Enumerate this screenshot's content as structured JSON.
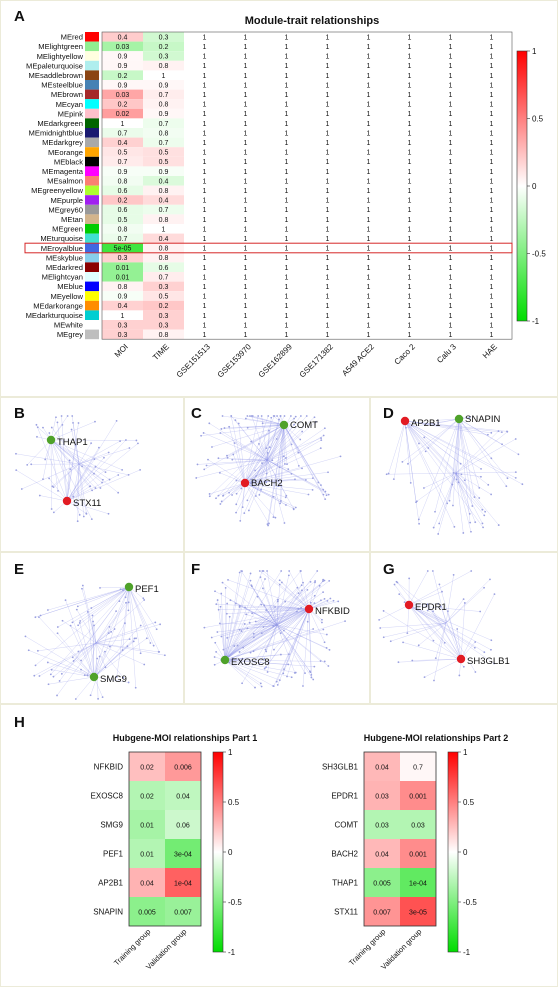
{
  "panels": {
    "a": "A",
    "b": "B",
    "c": "C",
    "d": "D",
    "e": "E",
    "f": "F",
    "g": "G",
    "h": "H"
  },
  "colors": {
    "pos": "#ff0000",
    "neg": "#00dd00",
    "mid": "#ffffff",
    "panel_border": "#ecebd9",
    "network_edge": "#8a8ee8",
    "node_red": "#e21b23",
    "node_green": "#4fa22a",
    "highlight_box": "#d62728"
  },
  "chart_data": [
    {
      "type": "heatmap",
      "title": "Module-trait relationships",
      "x_labels": [
        "MOI",
        "TIME",
        "GSE151513",
        "GSE153970",
        "GSE162899",
        "GSE171382",
        "A549 ACE2",
        "Caco 2",
        "Calu 3",
        "HAE"
      ],
      "modules": [
        {
          "name": "MEred",
          "swatch": "#ff0000"
        },
        {
          "name": "MElightgreen",
          "swatch": "#90ee90"
        },
        {
          "name": "MElightyellow",
          "swatch": "#ffffe0"
        },
        {
          "name": "MEpaleturquoise",
          "swatch": "#afeeee"
        },
        {
          "name": "MEsaddlebrown",
          "swatch": "#8b4513"
        },
        {
          "name": "MEsteelblue",
          "swatch": "#4682b4"
        },
        {
          "name": "MEbrown",
          "swatch": "#a52a2a"
        },
        {
          "name": "MEcyan",
          "swatch": "#00ffff"
        },
        {
          "name": "MEpink",
          "swatch": "#ffc0cb"
        },
        {
          "name": "MEdarkgreen",
          "swatch": "#006400"
        },
        {
          "name": "MEmidnightblue",
          "swatch": "#191970"
        },
        {
          "name": "MEdarkgrey",
          "swatch": "#a9a9a9"
        },
        {
          "name": "MEorange",
          "swatch": "#ffa500"
        },
        {
          "name": "MEblack",
          "swatch": "#000000"
        },
        {
          "name": "MEmagenta",
          "swatch": "#ff00ff"
        },
        {
          "name": "MEsalmon",
          "swatch": "#fa8072"
        },
        {
          "name": "MEgreenyellow",
          "swatch": "#adff2f"
        },
        {
          "name": "MEpurple",
          "swatch": "#a020f0"
        },
        {
          "name": "MEgrey60",
          "swatch": "#999999"
        },
        {
          "name": "MEtan",
          "swatch": "#d2b48c"
        },
        {
          "name": "MEgreen",
          "swatch": "#00cc00"
        },
        {
          "name": "MEturquoise",
          "swatch": "#40e0d0"
        },
        {
          "name": "MEroyalblue",
          "swatch": "#4169e1"
        },
        {
          "name": "MEskyblue",
          "swatch": "#87ceeb"
        },
        {
          "name": "MEdarkred",
          "swatch": "#8b0000"
        },
        {
          "name": "MElightcyan",
          "swatch": "#e0ffff"
        },
        {
          "name": "MEblue",
          "swatch": "#0000ff"
        },
        {
          "name": "MEyellow",
          "swatch": "#ffff00"
        },
        {
          "name": "MEdarkorange",
          "swatch": "#ff8c00"
        },
        {
          "name": "MEdarkturquoise",
          "swatch": "#00ced1"
        },
        {
          "name": "MEwhite",
          "swatch": "#ffffff"
        },
        {
          "name": "MEgrey",
          "swatch": "#bebebe"
        }
      ],
      "moi_labels": [
        "0.4",
        "0.03",
        "0.9",
        "0.9",
        "0.2",
        "0.9",
        "0.03",
        "0.2",
        "0.02",
        "1",
        "0.7",
        "0.4",
        "0.5",
        "0.7",
        "0.9",
        "0.8",
        "0.6",
        "0.2",
        "0.6",
        "0.5",
        "0.8",
        "0.7",
        "5e-05",
        "0.3",
        "0.01",
        "0.01",
        "0.8",
        "0.9",
        "0.4",
        "1",
        "0.3",
        "0.3"
      ],
      "moi_corr": [
        0.2,
        -0.35,
        0.03,
        0.03,
        -0.22,
        0.03,
        0.35,
        0.22,
        0.38,
        0,
        -0.08,
        0.18,
        0.1,
        0.08,
        -0.03,
        -0.05,
        -0.1,
        0.22,
        -0.1,
        -0.1,
        -0.05,
        -0.08,
        -0.75,
        0.18,
        -0.42,
        -0.42,
        0.05,
        -0.03,
        0.18,
        0,
        0.18,
        0.18
      ],
      "time_labels": [
        "0.3",
        "0.2",
        "0.3",
        "0.8",
        "1",
        "0.9",
        "0.7",
        "0.8",
        "0.9",
        "0.7",
        "0.8",
        "0.7",
        "0.5",
        "0.5",
        "0.9",
        "0.4",
        "0.8",
        "0.4",
        "0.7",
        "0.8",
        "1",
        "0.4",
        "0.8",
        "0.8",
        "0.6",
        "0.7",
        "0.3",
        "0.5",
        "0.2",
        "0.3",
        "0.3",
        "0.8"
      ],
      "time_corr": [
        -0.18,
        -0.22,
        -0.18,
        0.05,
        0,
        0.03,
        0.07,
        0.05,
        0.03,
        -0.07,
        -0.05,
        -0.07,
        0.12,
        0.12,
        -0.03,
        -0.14,
        0.05,
        0.14,
        -0.07,
        0.05,
        0,
        0.14,
        0.05,
        0.05,
        -0.1,
        0.07,
        0.18,
        0.1,
        0.22,
        0.18,
        0.18,
        0.05
      ],
      "constant_cell_label": "1",
      "highlight_row": "MEroyalblue",
      "legend": {
        "ticks": [
          "1",
          "0.5",
          "0",
          "-0.5",
          "-1"
        ],
        "range": [
          -1,
          1
        ]
      }
    },
    {
      "type": "heatmap",
      "title": "Hubgene-MOI relationships Part 1",
      "genes": [
        "NFKBID",
        "EXOSC8",
        "SMG9",
        "PEF1",
        "AP2B1",
        "SNAPIN"
      ],
      "x_labels": [
        "Training group",
        "Validation group"
      ],
      "training_labels": [
        "0.02",
        "0.02",
        "0.01",
        "0.01",
        "0.04",
        "0.005"
      ],
      "training_corr": [
        0.25,
        -0.3,
        -0.35,
        -0.3,
        0.3,
        -0.45
      ],
      "validation_labels": [
        "0.006",
        "0.04",
        "0.06",
        "3e-04",
        "1e-04",
        "0.007"
      ],
      "validation_corr": [
        0.4,
        -0.25,
        -0.2,
        -0.55,
        0.62,
        -0.4
      ],
      "legend": {
        "ticks": [
          "1",
          "0.5",
          "0",
          "-0.5",
          "-1"
        ],
        "range": [
          -1,
          1
        ]
      }
    },
    {
      "type": "heatmap",
      "title": "Hubgene-MOI relationships Part 2",
      "genes": [
        "SH3GLB1",
        "EPDR1",
        "COMT",
        "BACH2",
        "THAP1",
        "STX11"
      ],
      "x_labels": [
        "Training group",
        "Validation group"
      ],
      "training_labels": [
        "0.04",
        "0.03",
        "0.03",
        "0.04",
        "0.005",
        "0.007"
      ],
      "training_corr": [
        0.28,
        0.3,
        -0.3,
        0.28,
        -0.45,
        0.42
      ],
      "validation_labels": [
        "0.7",
        "0.001",
        "0.03",
        "0.001",
        "1e-04",
        "3e-05"
      ],
      "validation_corr": [
        0.03,
        0.45,
        -0.3,
        0.45,
        -0.62,
        0.68
      ],
      "legend": {
        "ticks": [
          "1",
          "0.5",
          "0",
          "-0.5",
          "-1"
        ],
        "range": [
          -1,
          1
        ]
      }
    }
  ],
  "networks": [
    {
      "panel": "B",
      "nodes": [
        {
          "label": "THAP1",
          "color": "green"
        },
        {
          "label": "STX11",
          "color": "red"
        }
      ]
    },
    {
      "panel": "C",
      "nodes": [
        {
          "label": "COMT",
          "color": "green"
        },
        {
          "label": "BACH2",
          "color": "red"
        }
      ]
    },
    {
      "panel": "D",
      "nodes": [
        {
          "label": "SNAPIN",
          "color": "green"
        },
        {
          "label": "AP2B1",
          "color": "red"
        }
      ]
    },
    {
      "panel": "E",
      "nodes": [
        {
          "label": "PEF1",
          "color": "green"
        },
        {
          "label": "SMG9",
          "color": "green"
        }
      ]
    },
    {
      "panel": "F",
      "nodes": [
        {
          "label": "NFKBID",
          "color": "red"
        },
        {
          "label": "EXOSC8",
          "color": "green"
        }
      ]
    },
    {
      "panel": "G",
      "nodes": [
        {
          "label": "EPDR1",
          "color": "red"
        },
        {
          "label": "SH3GLB1",
          "color": "red"
        }
      ]
    }
  ]
}
